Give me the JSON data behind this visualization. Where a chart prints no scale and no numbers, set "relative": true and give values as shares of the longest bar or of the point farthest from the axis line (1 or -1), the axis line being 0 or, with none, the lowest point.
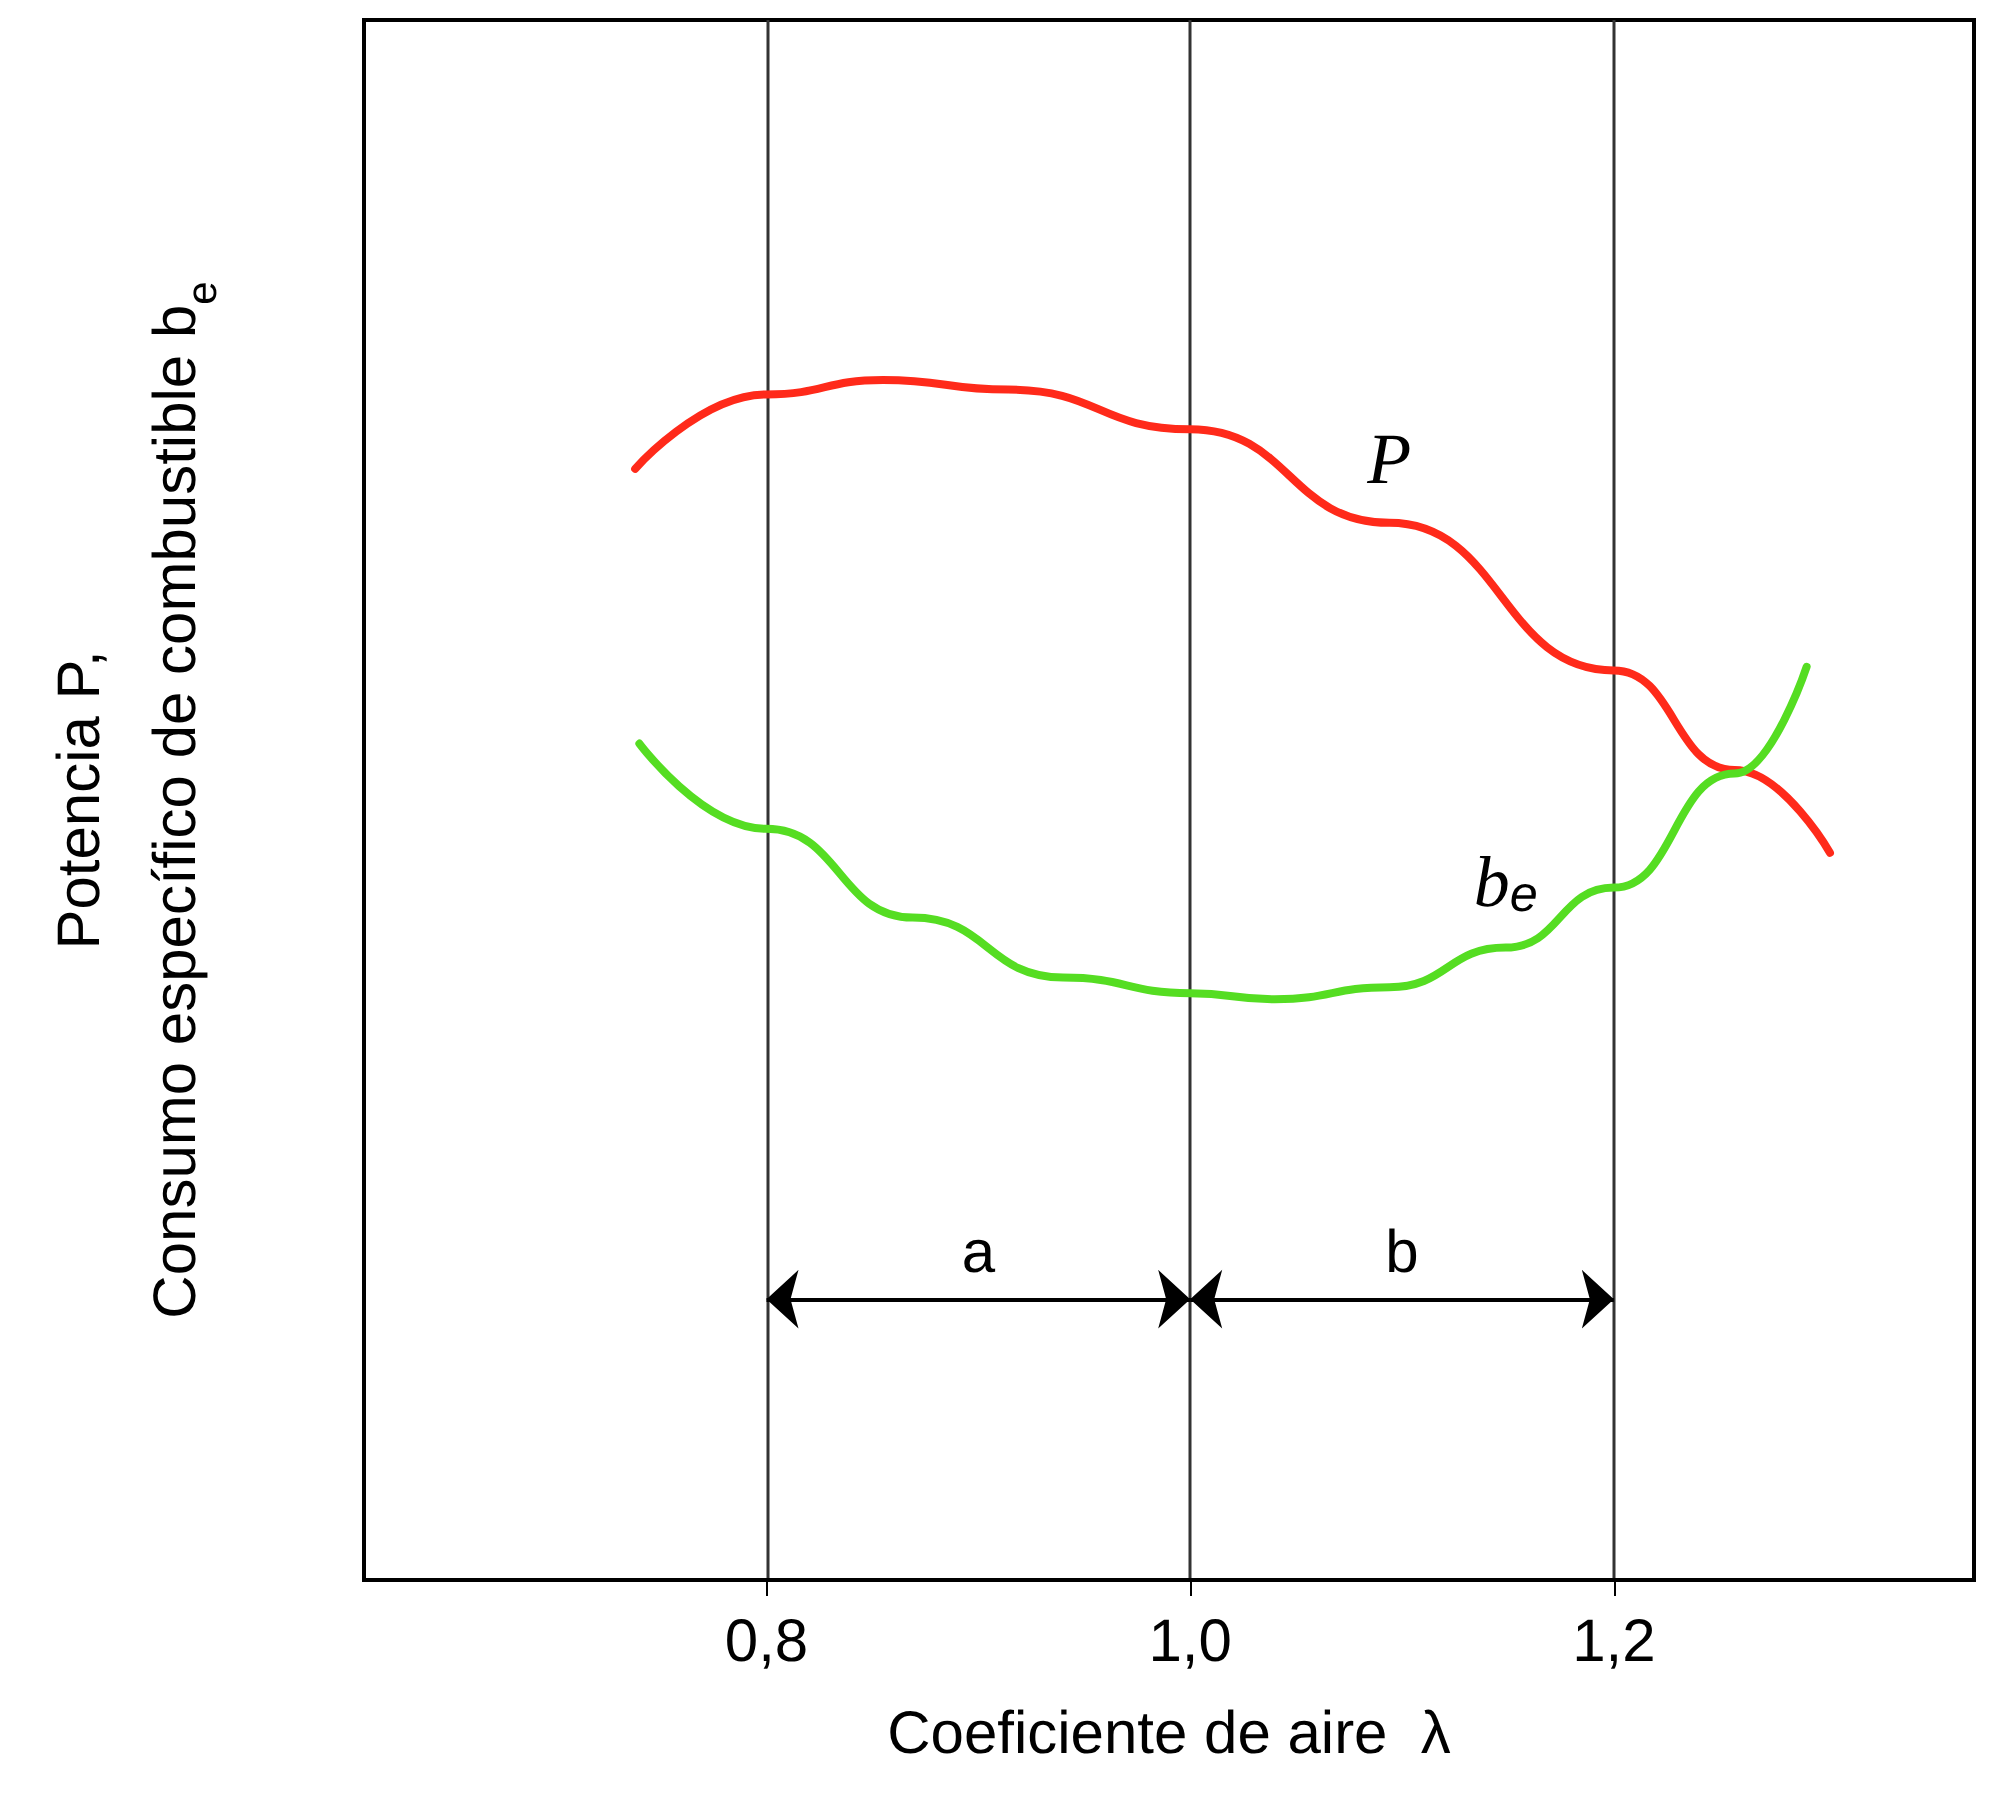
{
  "chart_data": {
    "type": "line",
    "relative": true,
    "xlabel": "Coeficiente de aire  λ",
    "ylabel": "Potencia P,\nConsumo específico de combustible b$_{e}$",
    "xlim": [
      0.61,
      1.37
    ],
    "xticks": [
      {
        "value": 0.8,
        "label": "0,8"
      },
      {
        "value": 1.0,
        "label": "1,0"
      },
      {
        "value": 1.2,
        "label": "1,2"
      }
    ],
    "grid": "x",
    "legend": false,
    "marker": "none",
    "line_style": "solid",
    "series": [
      {
        "name": "P",
        "color": "#ff2a1a",
        "x": [
          0.738,
          0.8,
          0.855,
          0.914,
          1.0,
          1.094,
          1.2,
          1.257,
          1.302
        ],
        "values": [
          0.926,
          0.988,
          1.0,
          0.992,
          0.959,
          0.881,
          0.758,
          0.675,
          0.606
        ]
      },
      {
        "name": "b$_{e}$",
        "color": "#55dd22",
        "x": [
          0.74,
          0.8,
          0.869,
          0.94,
          1.0,
          1.04,
          1.094,
          1.149,
          1.2,
          1.257,
          1.291
        ],
        "values": [
          0.697,
          0.626,
          0.552,
          0.502,
          0.489,
          0.484,
          0.494,
          0.527,
          0.577,
          0.672,
          0.761
        ]
      }
    ],
    "annotations": [
      "a",
      "b"
    ]
  }
}
